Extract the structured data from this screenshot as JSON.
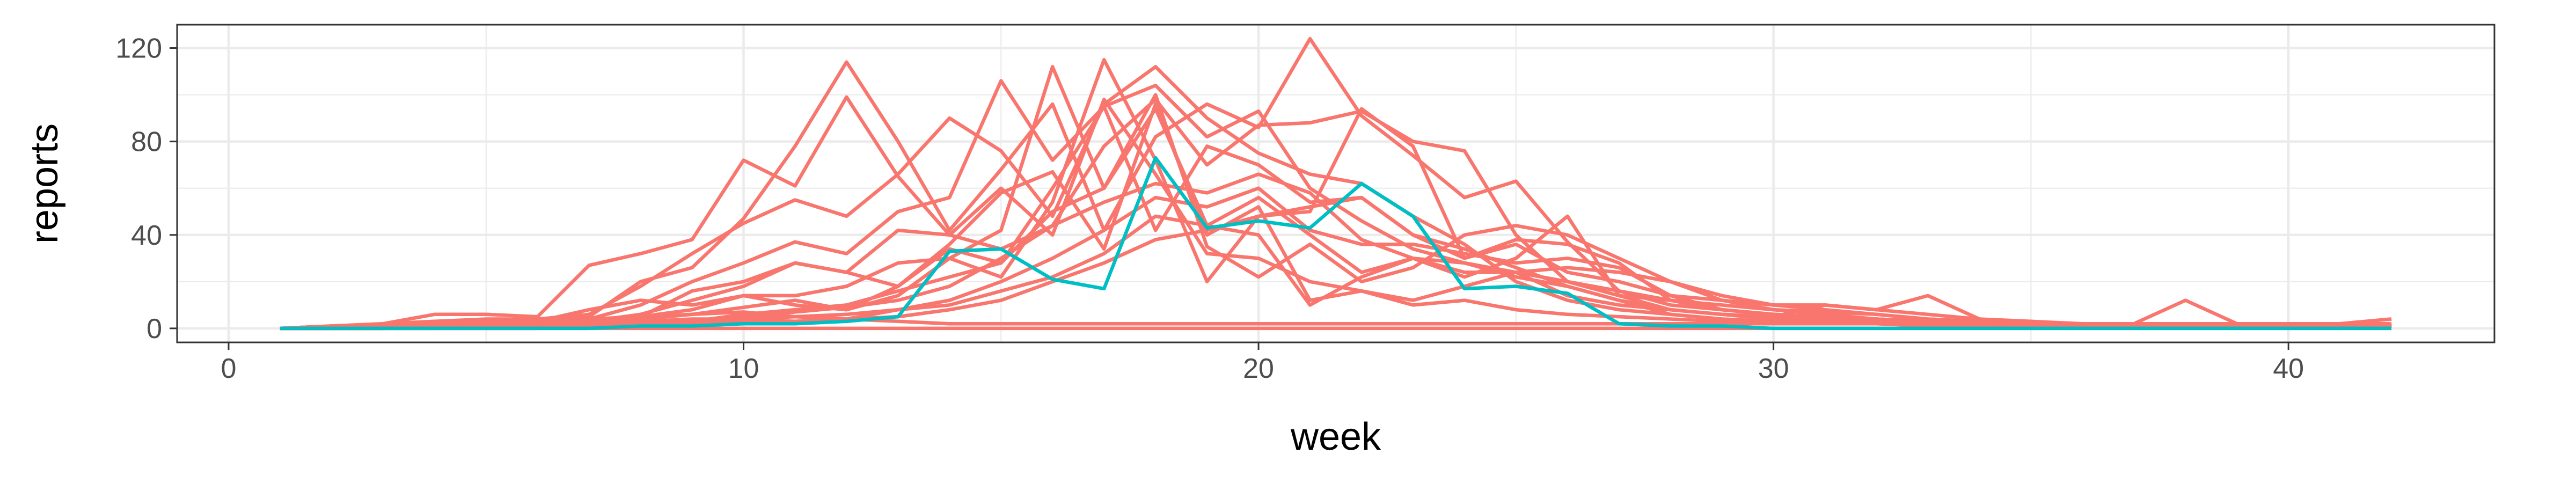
{
  "chart_data": {
    "type": "line",
    "xlabel": "week",
    "ylabel": "reports",
    "xlim": [
      -1,
      44
    ],
    "ylim": [
      -6,
      130
    ],
    "x_ticks": [
      0,
      10,
      20,
      30,
      40
    ],
    "y_ticks": [
      0,
      40,
      80,
      120
    ],
    "x_tick_labels": [
      "0",
      "10",
      "20",
      "30",
      "40"
    ],
    "y_tick_labels": [
      "0",
      "40",
      "80",
      "120"
    ],
    "grid": true,
    "legend": "none",
    "colors": {
      "main": "#F8766D",
      "highlight": "#00BFC4",
      "grid": "#EBEBEB",
      "panel_border": "#333333",
      "tick": "#4D4D4D"
    },
    "x": [
      1,
      2,
      3,
      4,
      5,
      6,
      7,
      8,
      9,
      10,
      11,
      12,
      13,
      14,
      15,
      16,
      17,
      18,
      19,
      20,
      21,
      22,
      23,
      24,
      25,
      26,
      27,
      28,
      29,
      30,
      31,
      32,
      33,
      34,
      35,
      36,
      37,
      38,
      39,
      40,
      41,
      42
    ],
    "series": [
      {
        "color": "#F8766D",
        "values": [
          0,
          1,
          2,
          6,
          6,
          5,
          27,
          32,
          38,
          72,
          61,
          99,
          65,
          40,
          34,
          44,
          78,
          98,
          70,
          87,
          88,
          93,
          80,
          76,
          40,
          20,
          14,
          12,
          8,
          6,
          5,
          4,
          3,
          2,
          2,
          1,
          1,
          1,
          1,
          1,
          1,
          2
        ]
      },
      {
        "color": "#F8766D",
        "values": [
          0,
          0,
          1,
          2,
          3,
          3,
          5,
          20,
          26,
          47,
          78,
          114,
          80,
          42,
          68,
          96,
          42,
          82,
          96,
          86,
          124,
          91,
          74,
          56,
          63,
          37,
          16,
          10,
          8,
          6,
          5,
          4,
          3,
          2,
          2,
          2,
          1,
          1,
          1,
          1,
          1,
          1
        ]
      },
      {
        "color": "#F8766D",
        "values": [
          0,
          1,
          1,
          3,
          4,
          4,
          6,
          18,
          32,
          45,
          55,
          48,
          66,
          90,
          76,
          48,
          96,
          112,
          90,
          75,
          66,
          62,
          48,
          36,
          20,
          12,
          8,
          6,
          4,
          3,
          3,
          2,
          2,
          2,
          1,
          1,
          1,
          1,
          1,
          1,
          1,
          1
        ]
      },
      {
        "color": "#F8766D",
        "values": [
          0,
          0,
          1,
          1,
          2,
          3,
          4,
          10,
          20,
          28,
          37,
          32,
          50,
          56,
          106,
          72,
          95,
          104,
          82,
          93,
          60,
          46,
          34,
          28,
          24,
          14,
          10,
          8,
          6,
          5,
          4,
          3,
          2,
          2,
          1,
          1,
          1,
          1,
          1,
          1,
          1,
          1
        ]
      },
      {
        "color": "#F8766D",
        "values": [
          0,
          0,
          1,
          1,
          2,
          2,
          3,
          6,
          12,
          18,
          28,
          24,
          42,
          40,
          60,
          40,
          98,
          66,
          32,
          30,
          20,
          16,
          10,
          12,
          8,
          6,
          5,
          4,
          3,
          3,
          2,
          2,
          1,
          1,
          1,
          1,
          1,
          1,
          1,
          1,
          1,
          1
        ]
      },
      {
        "color": "#F8766D",
        "values": [
          0,
          1,
          1,
          2,
          3,
          3,
          8,
          12,
          10,
          14,
          14,
          18,
          28,
          30,
          22,
          54,
          115,
          72,
          20,
          48,
          50,
          94,
          78,
          30,
          36,
          24,
          20,
          14,
          12,
          10,
          10,
          8,
          14,
          4,
          2,
          2,
          1,
          1,
          1,
          1,
          1,
          2
        ]
      },
      {
        "color": "#F8766D",
        "values": [
          0,
          0,
          0,
          1,
          1,
          2,
          3,
          5,
          8,
          14,
          10,
          8,
          14,
          30,
          42,
          112,
          60,
          94,
          44,
          40,
          10,
          22,
          30,
          22,
          30,
          48,
          14,
          8,
          6,
          4,
          4,
          3,
          2,
          2,
          2,
          1,
          1,
          1,
          1,
          1,
          1,
          1
        ]
      },
      {
        "color": "#F8766D",
        "values": [
          0,
          0,
          0,
          1,
          1,
          1,
          2,
          4,
          6,
          9,
          12,
          8,
          18,
          34,
          28,
          60,
          95,
          42,
          78,
          70,
          54,
          56,
          40,
          30,
          38,
          36,
          28,
          12,
          8,
          6,
          5,
          4,
          3,
          3,
          2,
          2,
          2,
          1,
          1,
          1,
          1,
          1
        ]
      },
      {
        "color": "#F8766D",
        "values": [
          0,
          1,
          2,
          3,
          2,
          2,
          3,
          5,
          16,
          20,
          28,
          24,
          18,
          36,
          58,
          67,
          34,
          96,
          40,
          52,
          12,
          16,
          12,
          18,
          24,
          26,
          24,
          20,
          14,
          10,
          8,
          6,
          4,
          3,
          2,
          2,
          2,
          1,
          1,
          1,
          1,
          1
        ]
      },
      {
        "color": "#F8766D",
        "values": [
          0,
          0,
          1,
          1,
          1,
          1,
          2,
          2,
          3,
          6,
          8,
          10,
          16,
          22,
          28,
          50,
          60,
          100,
          35,
          22,
          36,
          20,
          26,
          40,
          44,
          40,
          30,
          20,
          12,
          8,
          6,
          4,
          3,
          2,
          2,
          1,
          1,
          1,
          1,
          1,
          1,
          1
        ]
      },
      {
        "color": "#F8766D",
        "values": [
          0,
          0,
          0,
          1,
          1,
          1,
          2,
          2,
          3,
          5,
          7,
          9,
          12,
          18,
          30,
          44,
          54,
          62,
          58,
          66,
          58,
          38,
          30,
          28,
          22,
          18,
          12,
          6,
          4,
          3,
          3,
          3,
          2,
          2,
          1,
          1,
          1,
          1,
          1,
          1,
          1,
          1
        ]
      },
      {
        "color": "#F8766D",
        "values": [
          0,
          0,
          1,
          1,
          1,
          2,
          2,
          3,
          4,
          4,
          5,
          6,
          8,
          12,
          20,
          30,
          42,
          56,
          52,
          60,
          42,
          36,
          36,
          32,
          28,
          30,
          26,
          14,
          8,
          6,
          4,
          3,
          2,
          2,
          1,
          1,
          1,
          1,
          1,
          1,
          1,
          1
        ]
      },
      {
        "color": "#F8766D",
        "values": [
          0,
          0,
          0,
          0,
          1,
          1,
          1,
          2,
          3,
          4,
          3,
          4,
          8,
          10,
          16,
          22,
          32,
          48,
          44,
          56,
          40,
          24,
          30,
          24,
          24,
          20,
          16,
          12,
          10,
          8,
          7,
          6,
          4,
          3,
          2,
          2,
          2,
          12,
          2,
          2,
          2,
          4
        ]
      },
      {
        "color": "#F8766D",
        "values": [
          0,
          0,
          0,
          0,
          0,
          0,
          1,
          1,
          2,
          3,
          3,
          4,
          5,
          8,
          12,
          20,
          28,
          38,
          42,
          48,
          52,
          56,
          40,
          34,
          26,
          18,
          12,
          8,
          6,
          5,
          10,
          8,
          6,
          4,
          3,
          2,
          2,
          1,
          1,
          1,
          2,
          4
        ]
      },
      {
        "color": "#F8766D",
        "values": [
          0,
          0,
          0,
          0,
          0,
          0,
          0,
          0,
          0,
          0,
          0,
          0,
          0,
          0,
          0,
          0,
          0,
          0,
          0,
          0,
          0,
          0,
          0,
          0,
          0,
          0,
          0,
          0,
          0,
          0,
          0,
          0,
          0,
          0,
          0,
          0,
          0,
          0,
          0,
          0,
          0,
          0
        ]
      },
      {
        "color": "#F8766D",
        "values": [
          0,
          0,
          0,
          1,
          2,
          3,
          4,
          5,
          6,
          7,
          5,
          4,
          3,
          2,
          2,
          2,
          2,
          2,
          2,
          2,
          2,
          2,
          2,
          2,
          2,
          2,
          2,
          2,
          2,
          2,
          2,
          2,
          2,
          2,
          2,
          2,
          2,
          2,
          2,
          2,
          2,
          2
        ]
      },
      {
        "color": "#00BFC4",
        "values": [
          0,
          0,
          0,
          0,
          0,
          0,
          0,
          1,
          1,
          2,
          2,
          3,
          5,
          33,
          34,
          21,
          17,
          73,
          43,
          46,
          43,
          62,
          48,
          17,
          18,
          15,
          2,
          1,
          1,
          0,
          0,
          0,
          0,
          0,
          0,
          0,
          0,
          0,
          0,
          0,
          0,
          0
        ]
      }
    ]
  }
}
